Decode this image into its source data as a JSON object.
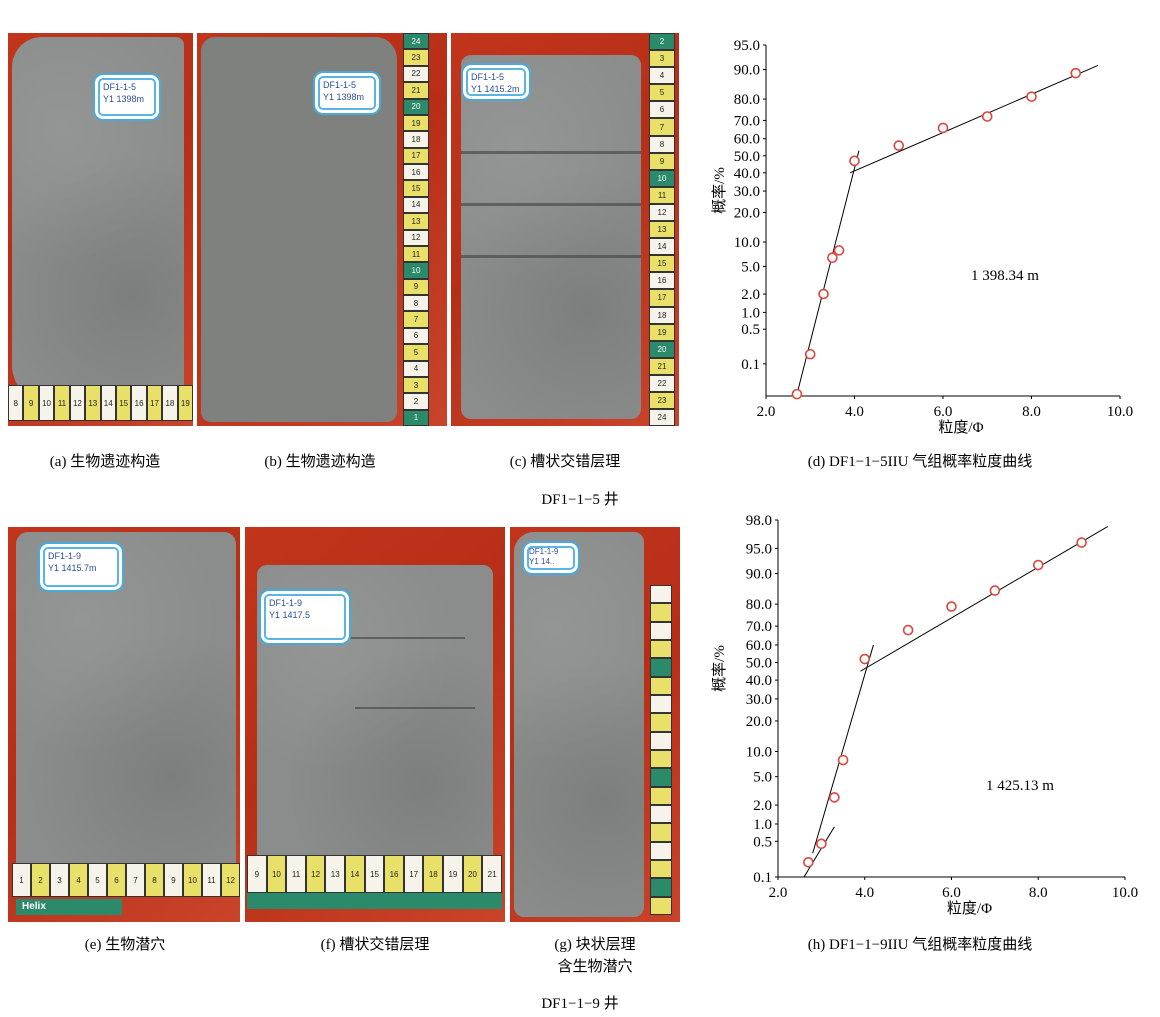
{
  "captions": {
    "a": "(a) 生物遗迹构造",
    "b": "(b) 生物遗迹构造",
    "c": "(c) 槽状交错层理",
    "d": "(d) DF1−1−5IIU 气组概率粒度曲线",
    "e": "(e) 生物潜穴",
    "f": "(f) 槽状交错层理",
    "g_line1": "(g) 块状层理",
    "g_line2": "含生物潜穴",
    "h": "(h) DF1−1−9IIU 气组概率粒度曲线",
    "well_top": "DF1−1−5 井",
    "well_bottom": "DF1−1−9 井"
  },
  "photo_labels": {
    "a": [
      "DF1-1-5",
      "Y1 1398m"
    ],
    "b": [
      "DF1-1-5",
      "Y1 1398m"
    ],
    "c": [
      "DF1-1-5",
      "Y1 1415.2m"
    ],
    "e": [
      "DF1-1-9",
      "Y1 1415.7m"
    ],
    "f": [
      "DF1-1-9",
      "Y1 1417.5"
    ],
    "g": [
      "DF1-1-9",
      "Y1 14.."
    ]
  },
  "ruler_brand": "Helix",
  "colors": {
    "background_red": "#c2351c",
    "core_grey": "#8b8d8c",
    "ruler_yellow": "#e9e06a",
    "ruler_green": "#2a8a6a",
    "point_marker": "#d9473f"
  },
  "chart_data": [
    {
      "type": "scatter",
      "x_label": "粒度/Φ",
      "y_label": "概率/%",
      "x_ticks": [
        "2.0",
        "4.0",
        "6.0",
        "8.0",
        "10.0"
      ],
      "xlim": [
        2.0,
        10.0
      ],
      "y_scale": "probability",
      "y_ticks": [
        "0.1",
        "0.5",
        "1.0",
        "2.0",
        "5.0",
        "10.0",
        "20.0",
        "30.0",
        "40.0",
        "50.0",
        "60.0",
        "70.0",
        "80.0",
        "90.0",
        "95.0"
      ],
      "annotation": "1 398.34 m",
      "points": [
        {
          "x": 2.7,
          "y": 0.02
        },
        {
          "x": 3.0,
          "y": 0.16
        },
        {
          "x": 3.3,
          "y": 2.0
        },
        {
          "x": 3.5,
          "y": 6.5
        },
        {
          "x": 3.65,
          "y": 8.0
        },
        {
          "x": 4.0,
          "y": 47
        },
        {
          "x": 5.0,
          "y": 56
        },
        {
          "x": 6.0,
          "y": 66
        },
        {
          "x": 7.0,
          "y": 72
        },
        {
          "x": 8.0,
          "y": 81
        },
        {
          "x": 9.0,
          "y": 89
        }
      ],
      "fit_lines": [
        {
          "x1": 2.7,
          "y1": 0.02,
          "x2": 4.1,
          "y2": 53
        },
        {
          "x1": 3.9,
          "y1": 40,
          "x2": 9.5,
          "y2": 91
        }
      ]
    },
    {
      "type": "scatter",
      "x_label": "粒度/Φ",
      "y_label": "概率/%",
      "x_ticks": [
        "2.0",
        "4.0",
        "6.0",
        "8.0",
        "10.0"
      ],
      "xlim": [
        2.0,
        10.0
      ],
      "y_scale": "probability",
      "y_ticks": [
        "0.1",
        "0.5",
        "1.0",
        "2.0",
        "5.0",
        "10.0",
        "20.0",
        "30.0",
        "40.0",
        "50.0",
        "60.0",
        "70.0",
        "80.0",
        "90.0",
        "95.0",
        "98.0"
      ],
      "annotation": "1 425.13 m",
      "points": [
        {
          "x": 2.7,
          "y": 0.2
        },
        {
          "x": 3.0,
          "y": 0.45
        },
        {
          "x": 3.3,
          "y": 2.6
        },
        {
          "x": 3.5,
          "y": 8.0
        },
        {
          "x": 4.0,
          "y": 52
        },
        {
          "x": 5.0,
          "y": 68
        },
        {
          "x": 6.0,
          "y": 79
        },
        {
          "x": 7.0,
          "y": 85
        },
        {
          "x": 8.0,
          "y": 92
        },
        {
          "x": 9.0,
          "y": 95.8
        }
      ],
      "fit_lines": [
        {
          "x1": 2.6,
          "y1": 0.1,
          "x2": 3.3,
          "y2": 0.9
        },
        {
          "x1": 2.8,
          "y1": 0.3,
          "x2": 4.2,
          "y2": 60
        },
        {
          "x1": 3.9,
          "y1": 45,
          "x2": 9.6,
          "y2": 97.5
        }
      ]
    }
  ]
}
